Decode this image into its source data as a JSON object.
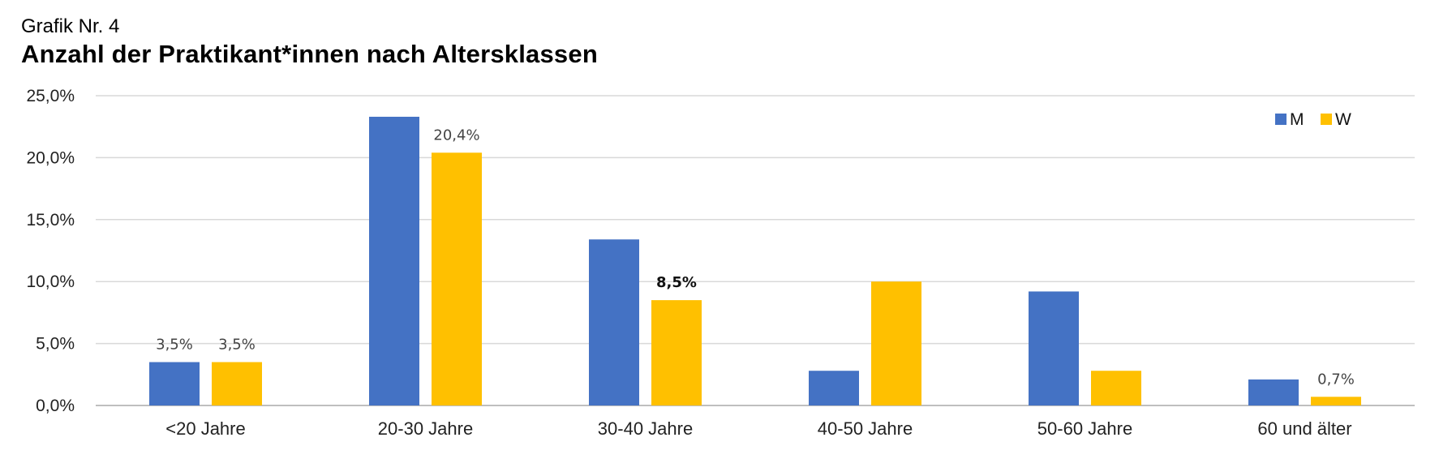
{
  "header": {
    "subtitle": "Grafik Nr. 4",
    "title": "Anzahl der Praktikant*innen nach Altersklassen"
  },
  "chart_data": {
    "type": "bar",
    "title": "Anzahl der Praktikant*innen nach Altersklassen",
    "subtitle": "Grafik Nr. 4",
    "categories": [
      "<20 Jahre",
      "20-30 Jahre",
      "30-40 Jahre",
      "40-50 Jahre",
      "50-60 Jahre",
      "60 und älter"
    ],
    "series": [
      {
        "name": "M",
        "color": "#4472C4",
        "values": [
          3.5,
          23.3,
          13.4,
          2.8,
          9.2,
          2.1
        ]
      },
      {
        "name": "W",
        "color": "#FFC000",
        "values": [
          3.5,
          20.4,
          8.5,
          10.0,
          2.8,
          0.7
        ]
      }
    ],
    "data_labels": [
      {
        "series": 0,
        "index": 0,
        "text": "3,5%",
        "bold": false
      },
      {
        "series": 1,
        "index": 0,
        "text": "3,5%",
        "bold": false
      },
      {
        "series": 1,
        "index": 1,
        "text": "20,4%",
        "bold": false
      },
      {
        "series": 1,
        "index": 2,
        "text": "8,5%",
        "bold": true
      },
      {
        "series": 1,
        "index": 5,
        "text": "0,7%",
        "bold": false
      }
    ],
    "y_ticks": [
      "0,0%",
      "5,0%",
      "10,0%",
      "15,0%",
      "20,0%",
      "25,0%"
    ],
    "ylim": [
      0,
      25
    ],
    "unit": "%",
    "grid": true,
    "legend_position": "top-right",
    "xlabel": "",
    "ylabel": ""
  }
}
